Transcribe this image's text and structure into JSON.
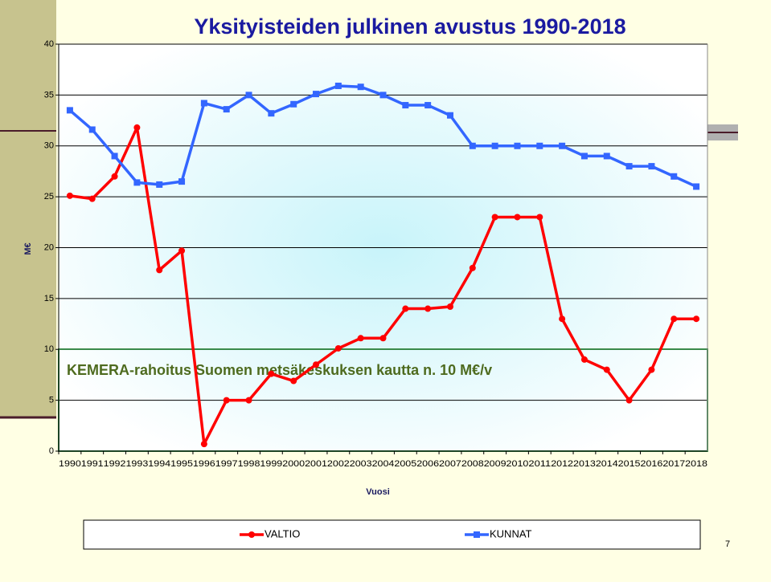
{
  "chart_data": {
    "type": "line",
    "title": "Yksityisteiden julkinen avustus 1990-2018",
    "x_label": "Vuosi",
    "y_label": "M€",
    "annotation": "KEMERA-rahoitus Suomen metsäkeskuksen kautta n. 10 M€/v",
    "page_number": "7",
    "categories": [
      "1990",
      "1991",
      "1992",
      "1993",
      "1994",
      "1995",
      "1996",
      "1997",
      "1998",
      "1999",
      "2000",
      "2001",
      "2002",
      "2003",
      "2004",
      "2005",
      "2006",
      "2007",
      "2008",
      "2009",
      "2010",
      "2011",
      "2012",
      "2013",
      "2014",
      "2015",
      "2016",
      "2017",
      "2018"
    ],
    "series": [
      {
        "name": "VALTIO",
        "color": "#ff0000",
        "marker": "circle",
        "values": [
          25.1,
          24.8,
          27,
          31.8,
          17.8,
          19.7,
          0.7,
          5,
          5,
          7.6,
          6.9,
          8.5,
          10.1,
          11.1,
          11.1,
          14,
          14,
          14.2,
          18,
          23,
          23,
          23,
          13,
          9,
          8,
          5,
          8,
          13,
          13
        ]
      },
      {
        "name": "KUNNAT",
        "color": "#3366ff",
        "marker": "square",
        "values": [
          33.5,
          31.6,
          29,
          26.4,
          26.2,
          26.5,
          34.2,
          33.6,
          35,
          33.2,
          34.1,
          35.1,
          35.9,
          35.8,
          35,
          34,
          34,
          33,
          30,
          30,
          30,
          30,
          30,
          29,
          29,
          28,
          28,
          27,
          26
        ]
      }
    ],
    "ylim": [
      0,
      40
    ],
    "yticks": [
      0,
      5,
      10,
      15,
      20,
      25,
      30,
      35,
      40
    ],
    "grid": true
  }
}
